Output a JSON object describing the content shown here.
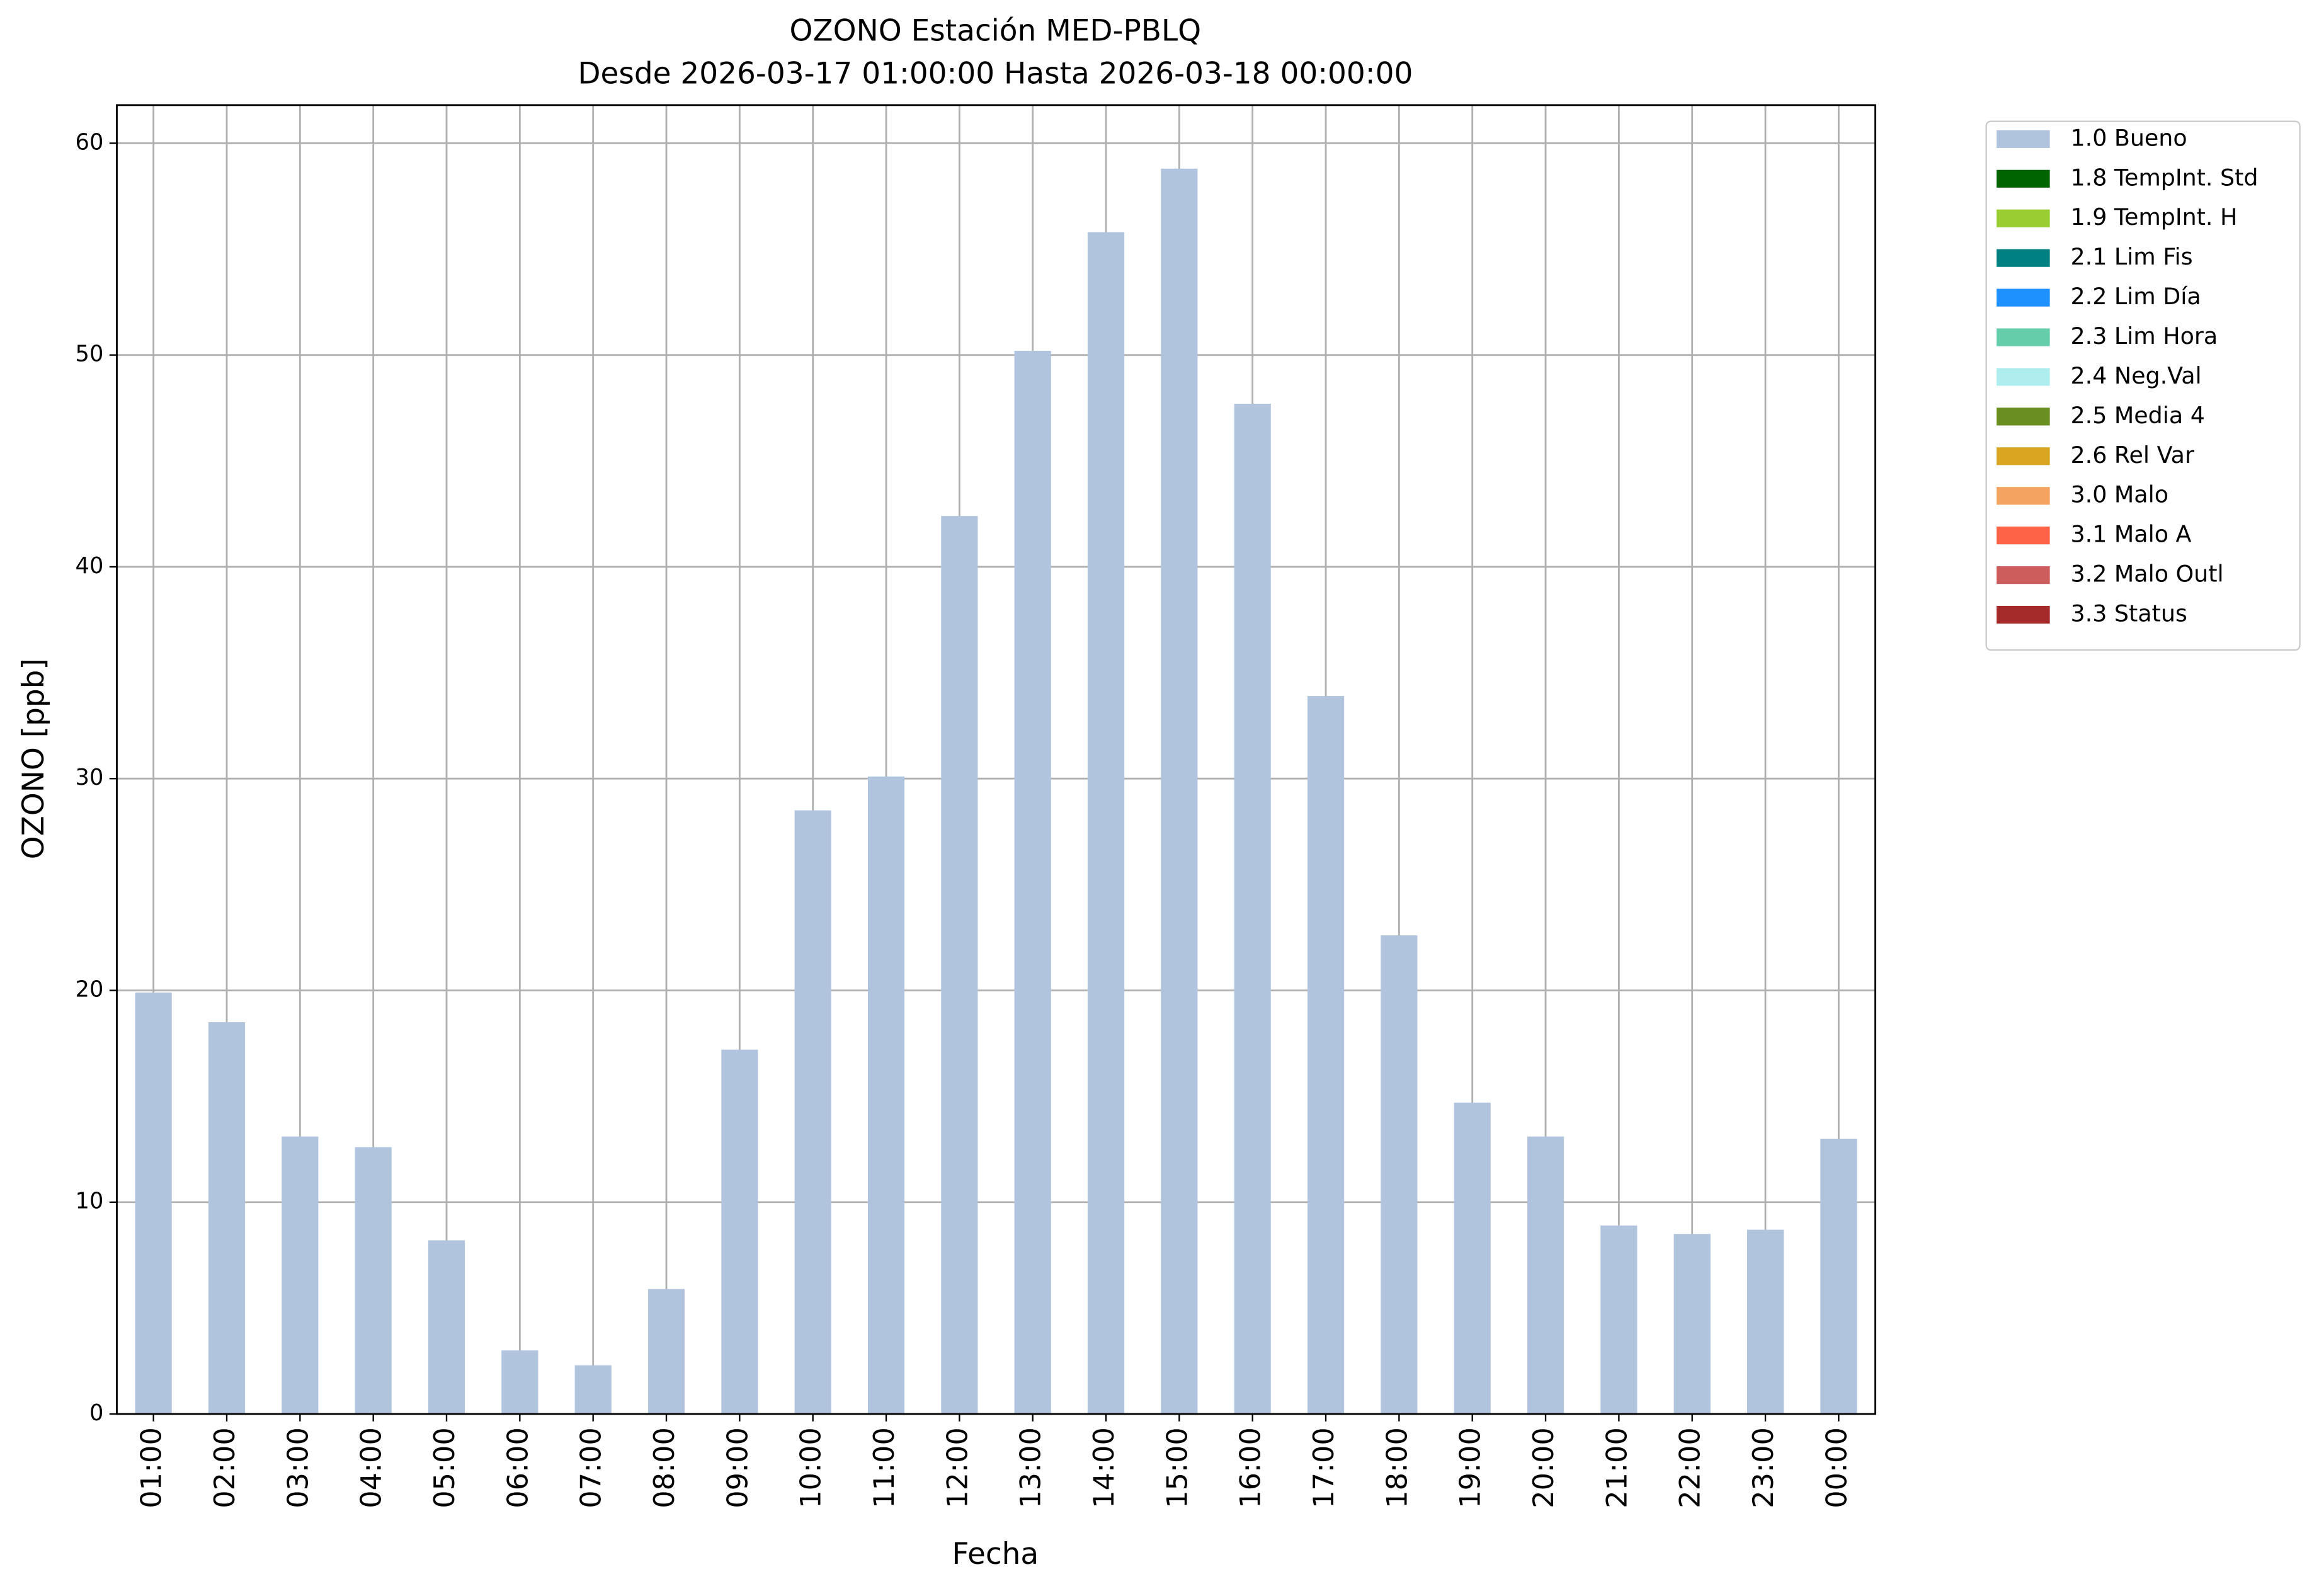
{
  "chart_data": {
    "type": "bar",
    "title": "OZONO Estación MED-PBLQ",
    "subtitle": "Desde 2026-03-17 01:00:00 Hasta 2026-03-18 00:00:00",
    "x_label": "Fecha",
    "y_label": "OZONO [ppb]",
    "categories": [
      "01:00",
      "02:00",
      "03:00",
      "04:00",
      "05:00",
      "06:00",
      "07:00",
      "08:00",
      "09:00",
      "10:00",
      "11:00",
      "12:00",
      "13:00",
      "14:00",
      "15:00",
      "16:00",
      "17:00",
      "18:00",
      "19:00",
      "20:00",
      "21:00",
      "22:00",
      "23:00",
      "00:00"
    ],
    "series": [
      {
        "name": "1.0 Bueno",
        "color": "#b0c4de",
        "values": [
          19.9,
          18.5,
          13.1,
          12.6,
          8.2,
          3.0,
          2.3,
          5.9,
          17.2,
          28.5,
          30.1,
          42.4,
          50.2,
          55.8,
          58.8,
          47.7,
          33.9,
          22.6,
          14.7,
          13.1,
          8.9,
          8.5,
          8.7,
          13.0
        ]
      },
      {
        "name": "1.8 TempInt. Std",
        "color": "#006400",
        "values": [
          null,
          null,
          null,
          null,
          null,
          null,
          null,
          null,
          null,
          null,
          null,
          null,
          null,
          null,
          null,
          null,
          null,
          null,
          null,
          null,
          null,
          null,
          null,
          null
        ]
      },
      {
        "name": "1.9 TempInt. H",
        "color": "#9acd32",
        "values": [
          null,
          null,
          null,
          null,
          null,
          null,
          null,
          null,
          null,
          null,
          null,
          null,
          null,
          null,
          null,
          null,
          null,
          null,
          null,
          null,
          null,
          null,
          null,
          null
        ]
      },
      {
        "name": "2.1 Lim Fis",
        "color": "#008080",
        "values": [
          null,
          null,
          null,
          null,
          null,
          null,
          null,
          null,
          null,
          null,
          null,
          null,
          null,
          null,
          null,
          null,
          null,
          null,
          null,
          null,
          null,
          null,
          null,
          null
        ]
      },
      {
        "name": "2.2 Lim Día",
        "color": "#1e90ff",
        "values": [
          null,
          null,
          null,
          null,
          null,
          null,
          null,
          null,
          null,
          null,
          null,
          null,
          null,
          null,
          null,
          null,
          null,
          null,
          null,
          null,
          null,
          null,
          null,
          null
        ]
      },
      {
        "name": "2.3 Lim Hora",
        "color": "#66cdaa",
        "values": [
          null,
          null,
          null,
          null,
          null,
          null,
          null,
          null,
          null,
          null,
          null,
          null,
          null,
          null,
          null,
          null,
          null,
          null,
          null,
          null,
          null,
          null,
          null,
          null
        ]
      },
      {
        "name": "2.4 Neg.Val",
        "color": "#afeeee",
        "values": [
          null,
          null,
          null,
          null,
          null,
          null,
          null,
          null,
          null,
          null,
          null,
          null,
          null,
          null,
          null,
          null,
          null,
          null,
          null,
          null,
          null,
          null,
          null,
          null
        ]
      },
      {
        "name": "2.5 Media 4",
        "color": "#6b8e23",
        "values": [
          null,
          null,
          null,
          null,
          null,
          null,
          null,
          null,
          null,
          null,
          null,
          null,
          null,
          null,
          null,
          null,
          null,
          null,
          null,
          null,
          null,
          null,
          null,
          null
        ]
      },
      {
        "name": "2.6 Rel Var",
        "color": "#daa520",
        "values": [
          null,
          null,
          null,
          null,
          null,
          null,
          null,
          null,
          null,
          null,
          null,
          null,
          null,
          null,
          null,
          null,
          null,
          null,
          null,
          null,
          null,
          null,
          null,
          null
        ]
      },
      {
        "name": "3.0 Malo",
        "color": "#f4a460",
        "values": [
          null,
          null,
          null,
          null,
          null,
          null,
          null,
          null,
          null,
          null,
          null,
          null,
          null,
          null,
          null,
          null,
          null,
          null,
          null,
          null,
          null,
          null,
          null,
          null
        ]
      },
      {
        "name": "3.1 Malo A",
        "color": "#ff6347",
        "values": [
          null,
          null,
          null,
          null,
          null,
          null,
          null,
          null,
          null,
          null,
          null,
          null,
          null,
          null,
          null,
          null,
          null,
          null,
          null,
          null,
          null,
          null,
          null,
          null
        ]
      },
      {
        "name": "3.2 Malo Outl",
        "color": "#cd5c5c",
        "values": [
          null,
          null,
          null,
          null,
          null,
          null,
          null,
          null,
          null,
          null,
          null,
          null,
          null,
          null,
          null,
          null,
          null,
          null,
          null,
          null,
          null,
          null,
          null,
          null
        ]
      },
      {
        "name": "3.3 Status",
        "color": "#a52a2a",
        "values": [
          null,
          null,
          null,
          null,
          null,
          null,
          null,
          null,
          null,
          null,
          null,
          null,
          null,
          null,
          null,
          null,
          null,
          null,
          null,
          null,
          null,
          null,
          null,
          null
        ]
      }
    ],
    "stacked": true,
    "ylim": [
      0,
      61.8
    ],
    "yticks": [
      0,
      10,
      20,
      30,
      40,
      50,
      60
    ],
    "grid": true,
    "legend": "outside-upper-right"
  }
}
